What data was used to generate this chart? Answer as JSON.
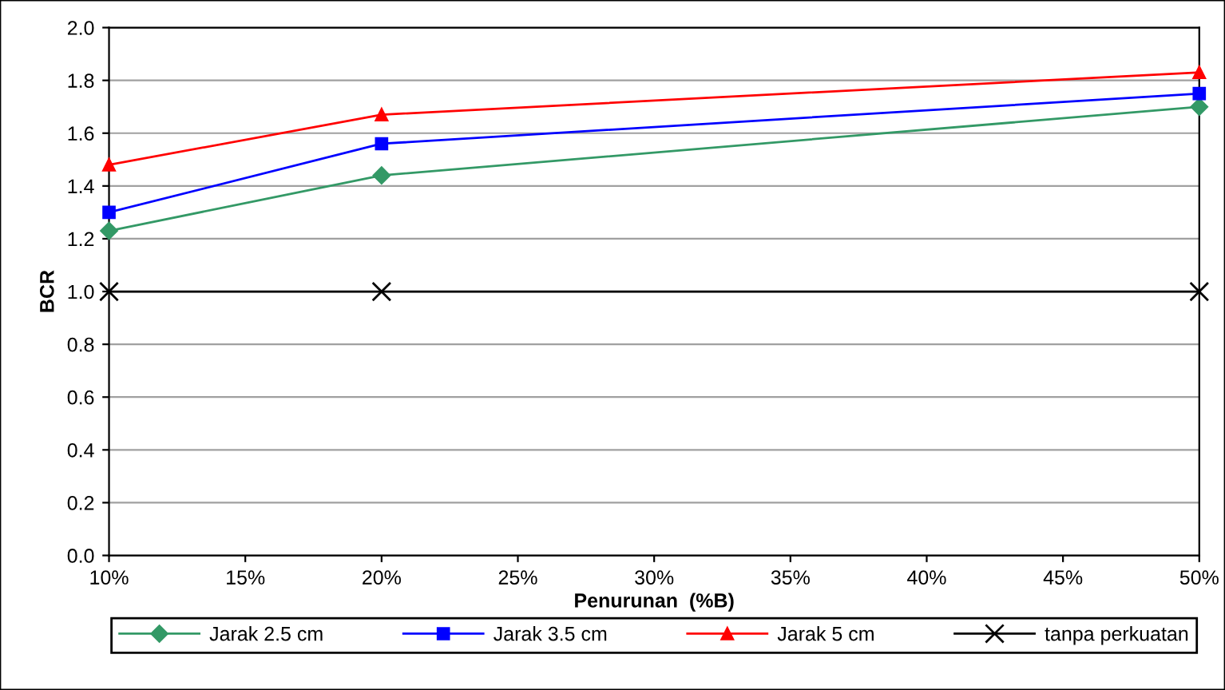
{
  "chart_data": {
    "type": "line",
    "xlabel": "Penurunan  (%B)",
    "ylabel": "BCR",
    "x": [
      10,
      20,
      50
    ],
    "series": [
      {
        "name": "Jarak 2.5 cm",
        "color": "#339966",
        "marker": "diamond",
        "values": [
          1.23,
          1.44,
          1.7
        ]
      },
      {
        "name": "Jarak 3.5 cm",
        "color": "#0000ff",
        "marker": "square",
        "values": [
          1.3,
          1.56,
          1.75
        ]
      },
      {
        "name": "Jarak 5 cm",
        "color": "#ff0000",
        "marker": "triangle",
        "values": [
          1.48,
          1.67,
          1.83
        ]
      },
      {
        "name": "tanpa perkuatan",
        "color": "#000000",
        "marker": "cross",
        "values": [
          1.0,
          1.0,
          1.0
        ]
      }
    ],
    "xlim": [
      10,
      50
    ],
    "xticks": [
      {
        "value": 10,
        "label": "10%"
      },
      {
        "value": 15,
        "label": "15%"
      },
      {
        "value": 20,
        "label": "20%"
      },
      {
        "value": 25,
        "label": "25%"
      },
      {
        "value": 30,
        "label": "30%"
      },
      {
        "value": 35,
        "label": "35%"
      },
      {
        "value": 40,
        "label": "40%"
      },
      {
        "value": 45,
        "label": "45%"
      },
      {
        "value": 50,
        "label": "50%"
      }
    ],
    "ylim": [
      0,
      2.0
    ],
    "yticks": [
      {
        "value": 0,
        "label": "0.0"
      },
      {
        "value": 0.2,
        "label": "0.2"
      },
      {
        "value": 0.4,
        "label": "0.4"
      },
      {
        "value": 0.6,
        "label": "0.6"
      },
      {
        "value": 0.8,
        "label": "0.8"
      },
      {
        "value": 1.0,
        "label": "1.0"
      },
      {
        "value": 1.2,
        "label": "1.2"
      },
      {
        "value": 1.4,
        "label": "1.4"
      },
      {
        "value": 1.6,
        "label": "1.6"
      },
      {
        "value": 1.8,
        "label": "1.8"
      },
      {
        "value": 2.0,
        "label": "2.0"
      }
    ],
    "grid": "y",
    "legend": "bottom",
    "line_style": "solid"
  }
}
